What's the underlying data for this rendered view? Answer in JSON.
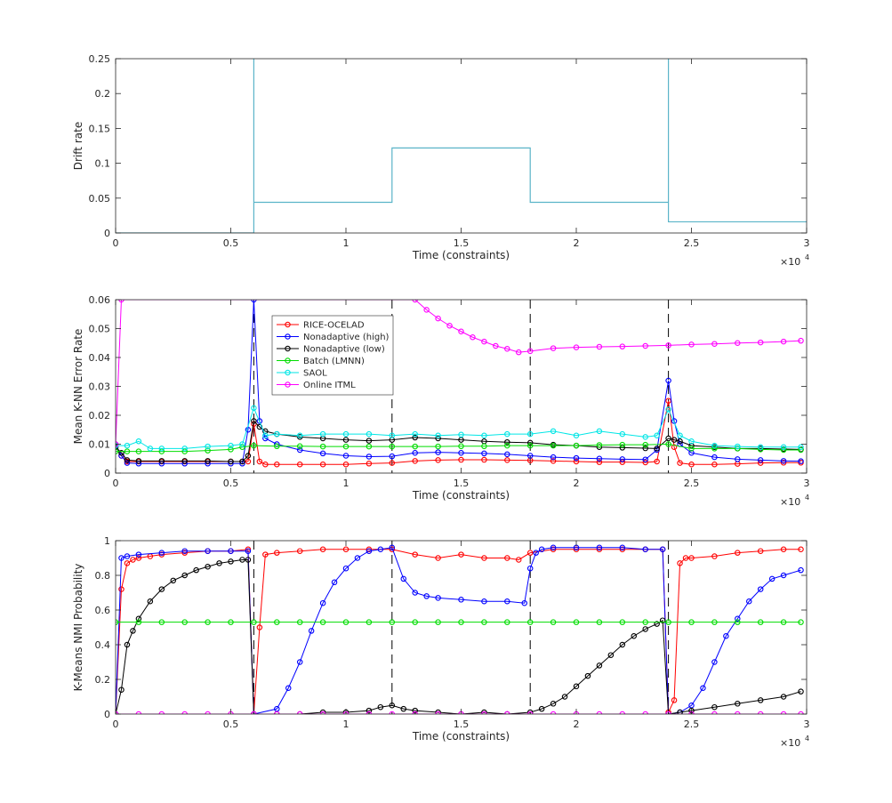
{
  "chart_data": [
    {
      "type": "line",
      "xlabel": "Time (constraints)",
      "ylabel": "Drift rate",
      "x_exponent_label": "×10",
      "x_exponent_power": "4",
      "xlim": [
        0,
        3
      ],
      "ylim": [
        0,
        0.25
      ],
      "xticks": [
        0,
        0.5,
        1,
        1.5,
        2,
        2.5,
        3
      ],
      "xtick_labels": [
        "0",
        "0.5",
        "1",
        "1.5",
        "2",
        "2.5",
        "3"
      ],
      "yticks": [
        0,
        0.05,
        0.1,
        0.15,
        0.2,
        0.25
      ],
      "ytick_labels": [
        "0",
        "0.05",
        "0.1",
        "0.15",
        "0.2",
        "0.25"
      ],
      "grid": false,
      "series": [
        {
          "color": "#5ab4c8",
          "markers": false,
          "x": [
            0,
            0.6,
            0.6,
            0.6,
            1.2,
            1.2,
            1.8,
            1.8,
            2.4,
            2.4,
            2.4,
            3.0
          ],
          "y": [
            0,
            0,
            0.25,
            0.044,
            0.044,
            0.122,
            0.122,
            0.044,
            0.044,
            0.25,
            0.016,
            0.016
          ]
        }
      ]
    },
    {
      "type": "line",
      "xlabel": "Time (constraints)",
      "ylabel": "Mean K-NN Error Rate",
      "x_exponent_label": "×10",
      "x_exponent_power": "4",
      "xlim": [
        0,
        3
      ],
      "ylim": [
        0,
        0.06
      ],
      "xticks": [
        0,
        0.5,
        1,
        1.5,
        2,
        2.5,
        3
      ],
      "xtick_labels": [
        "0",
        "0.5",
        "1",
        "1.5",
        "2",
        "2.5",
        "3"
      ],
      "yticks": [
        0,
        0.01,
        0.02,
        0.03,
        0.04,
        0.05,
        0.06
      ],
      "ytick_labels": [
        "0",
        "0.01",
        "0.02",
        "0.03",
        "0.04",
        "0.05",
        "0.06"
      ],
      "vlines": [
        0.6,
        1.2,
        1.8,
        2.4
      ],
      "legend": "top-left",
      "series": [
        {
          "name": "RICE-OCELAD",
          "color": "#ff0000",
          "markers": true,
          "x": [
            0,
            0.025,
            0.05,
            0.1,
            0.2,
            0.3,
            0.4,
            0.5,
            0.55,
            0.575,
            0.6,
            0.625,
            0.65,
            0.7,
            0.8,
            0.9,
            1.0,
            1.1,
            1.2,
            1.3,
            1.4,
            1.5,
            1.6,
            1.7,
            1.8,
            1.9,
            2.0,
            2.1,
            2.2,
            2.3,
            2.35,
            2.4,
            2.425,
            2.45,
            2.5,
            2.6,
            2.7,
            2.8,
            2.9,
            2.975
          ],
          "y": [
            0.009,
            0.006,
            0.004,
            0.004,
            0.004,
            0.004,
            0.004,
            0.004,
            0.004,
            0.004,
            0.017,
            0.004,
            0.003,
            0.003,
            0.003,
            0.003,
            0.003,
            0.0033,
            0.0035,
            0.0042,
            0.0045,
            0.0046,
            0.0046,
            0.0045,
            0.0044,
            0.0042,
            0.004,
            0.0038,
            0.0038,
            0.0037,
            0.004,
            0.025,
            0.009,
            0.0035,
            0.003,
            0.003,
            0.0032,
            0.0035,
            0.0036,
            0.0036
          ]
        },
        {
          "name": "Nonadaptive (high)",
          "color": "#0000ff",
          "markers": true,
          "x": [
            0,
            0.025,
            0.05,
            0.1,
            0.2,
            0.3,
            0.4,
            0.5,
            0.55,
            0.575,
            0.6,
            0.625,
            0.65,
            0.7,
            0.8,
            0.9,
            1.0,
            1.1,
            1.2,
            1.3,
            1.4,
            1.5,
            1.6,
            1.7,
            1.8,
            1.9,
            2.0,
            2.1,
            2.2,
            2.3,
            2.35,
            2.4,
            2.425,
            2.45,
            2.5,
            2.6,
            2.7,
            2.8,
            2.9,
            2.975
          ],
          "y": [
            0.01,
            0.006,
            0.0035,
            0.0033,
            0.0033,
            0.0033,
            0.0033,
            0.0033,
            0.0033,
            0.015,
            0.06,
            0.018,
            0.012,
            0.01,
            0.008,
            0.0068,
            0.006,
            0.0057,
            0.0058,
            0.007,
            0.0072,
            0.007,
            0.0068,
            0.0065,
            0.006,
            0.0055,
            0.0052,
            0.005,
            0.0048,
            0.0047,
            0.008,
            0.032,
            0.018,
            0.01,
            0.007,
            0.0055,
            0.0048,
            0.0045,
            0.0042,
            0.0041
          ]
        },
        {
          "name": "Nonadaptive (low)",
          "color": "#000000",
          "markers": true,
          "x": [
            0,
            0.025,
            0.05,
            0.1,
            0.2,
            0.3,
            0.4,
            0.5,
            0.55,
            0.575,
            0.6,
            0.625,
            0.65,
            0.7,
            0.8,
            0.9,
            1.0,
            1.1,
            1.2,
            1.3,
            1.4,
            1.5,
            1.6,
            1.7,
            1.8,
            1.9,
            2.0,
            2.1,
            2.2,
            2.3,
            2.35,
            2.4,
            2.425,
            2.45,
            2.5,
            2.6,
            2.7,
            2.8,
            2.9,
            2.975
          ],
          "y": [
            0.009,
            0.007,
            0.0045,
            0.0042,
            0.0042,
            0.0042,
            0.0042,
            0.004,
            0.004,
            0.006,
            0.018,
            0.016,
            0.0145,
            0.0135,
            0.0125,
            0.012,
            0.0115,
            0.0112,
            0.0115,
            0.0123,
            0.012,
            0.0115,
            0.011,
            0.0107,
            0.0105,
            0.0098,
            0.0095,
            0.009,
            0.0088,
            0.0086,
            0.0085,
            0.012,
            0.0115,
            0.011,
            0.0095,
            0.009,
            0.0085,
            0.0085,
            0.0083,
            0.0082
          ]
        },
        {
          "name": "Batch (LMNN)",
          "color": "#00dd00",
          "markers": true,
          "x": [
            0,
            0.05,
            0.1,
            0.2,
            0.3,
            0.4,
            0.5,
            0.55,
            0.6,
            0.7,
            0.8,
            0.9,
            1.0,
            1.1,
            1.2,
            1.3,
            1.4,
            1.5,
            1.6,
            1.7,
            1.8,
            1.9,
            2.0,
            2.1,
            2.2,
            2.3,
            2.4,
            2.5,
            2.6,
            2.7,
            2.8,
            2.9,
            2.975
          ],
          "y": [
            0.0075,
            0.0075,
            0.0075,
            0.0075,
            0.0075,
            0.0078,
            0.0082,
            0.009,
            0.0095,
            0.0093,
            0.0093,
            0.0092,
            0.0092,
            0.0092,
            0.0092,
            0.0092,
            0.0092,
            0.0093,
            0.0093,
            0.0095,
            0.0095,
            0.0095,
            0.0095,
            0.0097,
            0.0098,
            0.0098,
            0.01,
            0.0085,
            0.0085,
            0.0085,
            0.0082,
            0.008,
            0.008
          ]
        },
        {
          "name": "SAOL",
          "color": "#00e6e6",
          "markers": true,
          "x": [
            0,
            0.05,
            0.1,
            0.15,
            0.2,
            0.3,
            0.4,
            0.5,
            0.55,
            0.6,
            0.65,
            0.7,
            0.8,
            0.9,
            1.0,
            1.1,
            1.2,
            1.3,
            1.4,
            1.5,
            1.6,
            1.7,
            1.8,
            1.9,
            2.0,
            2.1,
            2.2,
            2.3,
            2.35,
            2.4,
            2.45,
            2.5,
            2.6,
            2.7,
            2.8,
            2.9,
            2.975
          ],
          "y": [
            0.0095,
            0.0095,
            0.011,
            0.0085,
            0.0085,
            0.0085,
            0.0092,
            0.0095,
            0.01,
            0.0225,
            0.013,
            0.0135,
            0.013,
            0.0135,
            0.0135,
            0.0135,
            0.013,
            0.0135,
            0.013,
            0.0133,
            0.013,
            0.0135,
            0.0135,
            0.0145,
            0.013,
            0.0145,
            0.0135,
            0.0125,
            0.013,
            0.022,
            0.013,
            0.011,
            0.0095,
            0.0092,
            0.009,
            0.009,
            0.009
          ]
        },
        {
          "name": "Online ITML",
          "color": "#ff00ff",
          "markers": true,
          "x": [
            0,
            0.025,
            1.3,
            1.35,
            1.4,
            1.45,
            1.5,
            1.55,
            1.6,
            1.65,
            1.7,
            1.75,
            1.8,
            1.9,
            2.0,
            2.1,
            2.2,
            2.3,
            2.4,
            2.5,
            2.6,
            2.7,
            2.8,
            2.9,
            2.975
          ],
          "y": [
            0.01,
            0.06,
            0.06,
            0.0565,
            0.0535,
            0.051,
            0.049,
            0.047,
            0.0455,
            0.044,
            0.043,
            0.0418,
            0.0422,
            0.0432,
            0.0435,
            0.0437,
            0.0438,
            0.044,
            0.0442,
            0.0445,
            0.0447,
            0.045,
            0.0452,
            0.0455,
            0.0458
          ]
        }
      ]
    },
    {
      "type": "line",
      "xlabel": "Time (constraints)",
      "ylabel": "K-Means NMI Probability",
      "x_exponent_label": "×10",
      "x_exponent_power": "4",
      "xlim": [
        0,
        3
      ],
      "ylim": [
        0,
        1
      ],
      "xticks": [
        0,
        0.5,
        1,
        1.5,
        2,
        2.5,
        3
      ],
      "xtick_labels": [
        "0",
        "0.5",
        "1",
        "1.5",
        "2",
        "2.5",
        "3"
      ],
      "yticks": [
        0,
        0.2,
        0.4,
        0.6,
        0.8,
        1
      ],
      "ytick_labels": [
        "0",
        "0.2",
        "0.4",
        "0.6",
        "0.8",
        "1"
      ],
      "vlines": [
        0.6,
        1.2,
        1.8,
        2.4
      ],
      "series": [
        {
          "name": "RICE-OCELAD",
          "color": "#ff0000",
          "markers": true,
          "x": [
            0,
            0.025,
            0.05,
            0.075,
            0.1,
            0.15,
            0.2,
            0.3,
            0.4,
            0.5,
            0.575,
            0.6,
            0.625,
            0.65,
            0.7,
            0.8,
            0.9,
            1.0,
            1.1,
            1.2,
            1.3,
            1.4,
            1.5,
            1.6,
            1.7,
            1.75,
            1.8,
            1.9,
            2.0,
            2.1,
            2.2,
            2.3,
            2.375,
            2.4,
            2.425,
            2.45,
            2.475,
            2.5,
            2.6,
            2.7,
            2.8,
            2.9,
            2.975
          ],
          "y": [
            0,
            0.72,
            0.87,
            0.89,
            0.9,
            0.91,
            0.92,
            0.93,
            0.94,
            0.94,
            0.95,
            0,
            0.5,
            0.92,
            0.93,
            0.94,
            0.95,
            0.95,
            0.95,
            0.95,
            0.92,
            0.9,
            0.92,
            0.9,
            0.9,
            0.89,
            0.93,
            0.95,
            0.95,
            0.95,
            0.95,
            0.95,
            0.95,
            0.01,
            0.08,
            0.87,
            0.9,
            0.9,
            0.91,
            0.93,
            0.94,
            0.95,
            0.95
          ]
        },
        {
          "name": "Nonadaptive (high)",
          "color": "#0000ff",
          "markers": true,
          "x": [
            0,
            0.025,
            0.05,
            0.1,
            0.2,
            0.3,
            0.4,
            0.5,
            0.575,
            0.6,
            0.7,
            0.75,
            0.8,
            0.85,
            0.9,
            0.95,
            1.0,
            1.05,
            1.1,
            1.15,
            1.2,
            1.25,
            1.3,
            1.35,
            1.4,
            1.5,
            1.6,
            1.7,
            1.775,
            1.8,
            1.825,
            1.85,
            1.9,
            2.0,
            2.1,
            2.2,
            2.3,
            2.375,
            2.4,
            2.45,
            2.5,
            2.55,
            2.6,
            2.65,
            2.7,
            2.75,
            2.8,
            2.85,
            2.9,
            2.975
          ],
          "y": [
            0,
            0.9,
            0.91,
            0.92,
            0.93,
            0.94,
            0.94,
            0.94,
            0.94,
            0,
            0.03,
            0.15,
            0.3,
            0.48,
            0.64,
            0.76,
            0.84,
            0.9,
            0.94,
            0.95,
            0.96,
            0.78,
            0.7,
            0.68,
            0.67,
            0.66,
            0.65,
            0.65,
            0.64,
            0.84,
            0.93,
            0.95,
            0.96,
            0.96,
            0.96,
            0.96,
            0.95,
            0.95,
            0,
            0.01,
            0.05,
            0.15,
            0.3,
            0.45,
            0.55,
            0.65,
            0.72,
            0.78,
            0.8,
            0.83
          ]
        },
        {
          "name": "Nonadaptive (low)",
          "color": "#000000",
          "markers": true,
          "x": [
            0,
            0.025,
            0.05,
            0.075,
            0.1,
            0.15,
            0.2,
            0.25,
            0.3,
            0.35,
            0.4,
            0.45,
            0.5,
            0.55,
            0.575,
            0.6,
            0.7,
            0.8,
            0.9,
            1.0,
            1.1,
            1.15,
            1.2,
            1.25,
            1.3,
            1.4,
            1.5,
            1.6,
            1.7,
            1.8,
            1.85,
            1.9,
            1.95,
            2.0,
            2.05,
            2.1,
            2.15,
            2.2,
            2.25,
            2.3,
            2.35,
            2.375,
            2.4,
            2.45,
            2.5,
            2.6,
            2.7,
            2.8,
            2.9,
            2.975
          ],
          "y": [
            0,
            0.14,
            0.4,
            0.48,
            0.55,
            0.65,
            0.72,
            0.77,
            0.8,
            0.83,
            0.85,
            0.87,
            0.88,
            0.89,
            0.89,
            0,
            0,
            0,
            0.01,
            0.01,
            0.02,
            0.04,
            0.05,
            0.03,
            0.02,
            0.01,
            0,
            0.01,
            0,
            0.01,
            0.03,
            0.06,
            0.1,
            0.16,
            0.22,
            0.28,
            0.34,
            0.4,
            0.45,
            0.49,
            0.52,
            0.54,
            0,
            0.01,
            0.02,
            0.04,
            0.06,
            0.08,
            0.1,
            0.13
          ]
        },
        {
          "name": "Batch (LMNN)",
          "color": "#00dd00",
          "markers": true,
          "x": [
            0,
            0.1,
            0.2,
            0.3,
            0.4,
            0.5,
            0.6,
            0.7,
            0.8,
            0.9,
            1.0,
            1.1,
            1.2,
            1.3,
            1.4,
            1.5,
            1.6,
            1.7,
            1.8,
            1.9,
            2.0,
            2.1,
            2.2,
            2.3,
            2.4,
            2.5,
            2.6,
            2.7,
            2.8,
            2.9,
            2.975
          ],
          "y": [
            0.53,
            0.53,
            0.53,
            0.53,
            0.53,
            0.53,
            0.53,
            0.53,
            0.53,
            0.53,
            0.53,
            0.53,
            0.53,
            0.53,
            0.53,
            0.53,
            0.53,
            0.53,
            0.53,
            0.53,
            0.53,
            0.53,
            0.53,
            0.53,
            0.53,
            0.53,
            0.53,
            0.53,
            0.53,
            0.53,
            0.53
          ]
        },
        {
          "name": "Online ITML",
          "color": "#ff00ff",
          "markers": true,
          "x": [
            0,
            0.1,
            0.2,
            0.3,
            0.4,
            0.5,
            0.6,
            0.7,
            0.8,
            0.9,
            1.0,
            1.1,
            1.2,
            1.3,
            1.4,
            1.5,
            1.6,
            1.7,
            1.8,
            1.9,
            2.0,
            2.1,
            2.2,
            2.3,
            2.4,
            2.5,
            2.6,
            2.7,
            2.8,
            2.9,
            2.975
          ],
          "y": [
            0,
            0,
            0,
            0,
            0,
            0,
            0,
            0,
            0,
            0,
            0,
            0,
            0,
            0,
            0,
            0,
            0,
            0,
            0,
            0,
            0,
            0,
            0,
            0,
            0,
            0,
            0,
            0,
            0,
            0,
            0
          ]
        }
      ]
    }
  ]
}
